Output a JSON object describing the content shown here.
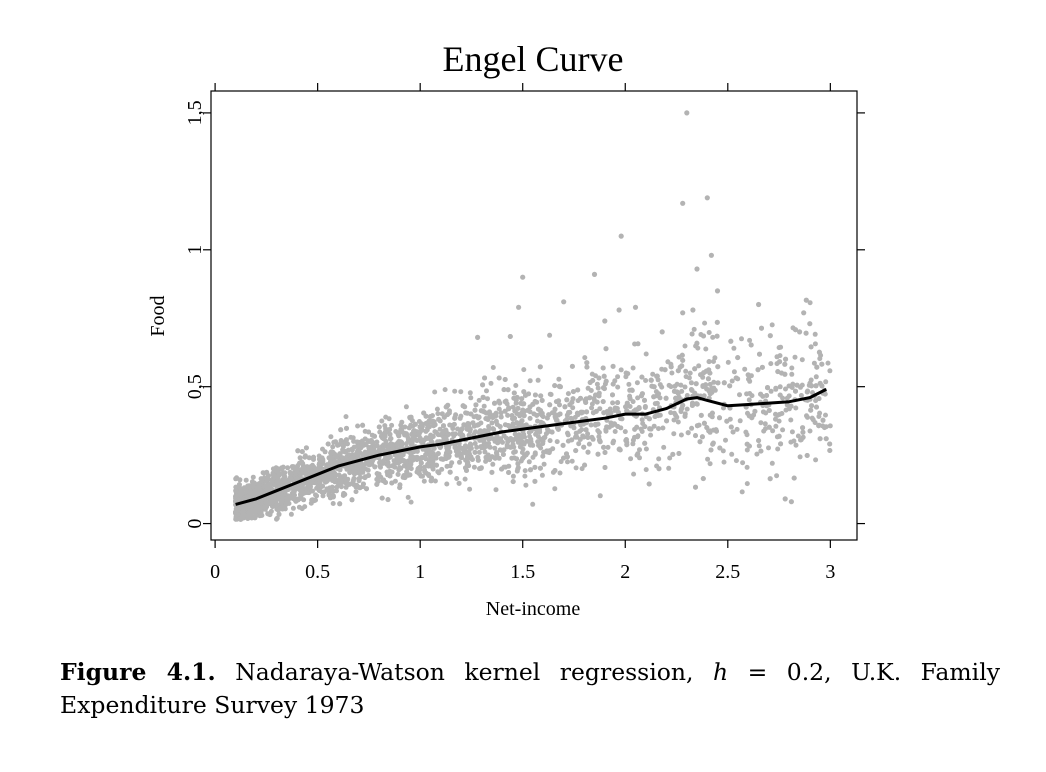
{
  "chart_data": {
    "type": "scatter",
    "title": "Engel Curve",
    "xlabel": "Net-income",
    "ylabel": "Food",
    "xlim": [
      -0.02,
      3.13
    ],
    "ylim": [
      -0.06,
      1.58
    ],
    "x_ticks": [
      0,
      0.5,
      1,
      1.5,
      2,
      2.5,
      3
    ],
    "x_tick_labels": [
      "0",
      "0.5",
      "1",
      "1.5",
      "2",
      "2.5",
      "3"
    ],
    "y_ticks": [
      0,
      0.5,
      1,
      1.5
    ],
    "y_tick_labels": [
      "0",
      "0,5",
      "1",
      "1,5"
    ],
    "grid": false,
    "point_color": "#b3b3b3",
    "line_color": "#000000",
    "series": [
      {
        "type": "line",
        "x": [
          0.1,
          0.2,
          0.3,
          0.4,
          0.5,
          0.6,
          0.7,
          0.8,
          0.9,
          1.0,
          1.1,
          1.2,
          1.3,
          1.4,
          1.5,
          1.6,
          1.7,
          1.8,
          1.9,
          2.0,
          2.1,
          2.2,
          2.3,
          2.35,
          2.4,
          2.5,
          2.6,
          2.7,
          2.8,
          2.9,
          2.98
        ],
        "y": [
          0.07,
          0.09,
          0.12,
          0.15,
          0.18,
          0.21,
          0.23,
          0.25,
          0.265,
          0.28,
          0.29,
          0.305,
          0.32,
          0.335,
          0.345,
          0.355,
          0.365,
          0.375,
          0.385,
          0.4,
          0.4,
          0.42,
          0.455,
          0.46,
          0.45,
          0.43,
          0.435,
          0.44,
          0.445,
          0.46,
          0.49
        ]
      }
    ],
    "outliers": [
      {
        "x": 2.3,
        "y": 1.5
      },
      {
        "x": 2.28,
        "y": 1.17
      },
      {
        "x": 2.4,
        "y": 1.19
      },
      {
        "x": 1.98,
        "y": 1.05
      },
      {
        "x": 2.42,
        "y": 0.98
      },
      {
        "x": 2.35,
        "y": 0.93
      },
      {
        "x": 1.5,
        "y": 0.9
      },
      {
        "x": 1.85,
        "y": 0.91
      },
      {
        "x": 2.45,
        "y": 0.85
      },
      {
        "x": 1.7,
        "y": 0.81
      },
      {
        "x": 1.48,
        "y": 0.79
      },
      {
        "x": 2.28,
        "y": 0.77
      },
      {
        "x": 2.33,
        "y": 0.78
      },
      {
        "x": 2.65,
        "y": 0.8
      },
      {
        "x": 2.87,
        "y": 0.77
      },
      {
        "x": 1.97,
        "y": 0.78
      },
      {
        "x": 2.85,
        "y": 0.7
      },
      {
        "x": 2.78,
        "y": 0.09
      },
      {
        "x": 2.81,
        "y": 0.08
      },
      {
        "x": 2.95,
        "y": 0.31
      },
      {
        "x": 2.98,
        "y": 0.31
      },
      {
        "x": 2.9,
        "y": 0.73
      },
      {
        "x": 2.05,
        "y": 0.79
      },
      {
        "x": 1.28,
        "y": 0.68
      },
      {
        "x": 2.18,
        "y": 0.7
      },
      {
        "x": 1.9,
        "y": 0.74
      }
    ]
  },
  "caption": {
    "label": "Figure 4.1.",
    "text_before": " Nadaraya-Watson kernel regression, ",
    "math_var": "h",
    "text_after": " = 0.2, U.K. Family Expenditure Survey 1973"
  }
}
